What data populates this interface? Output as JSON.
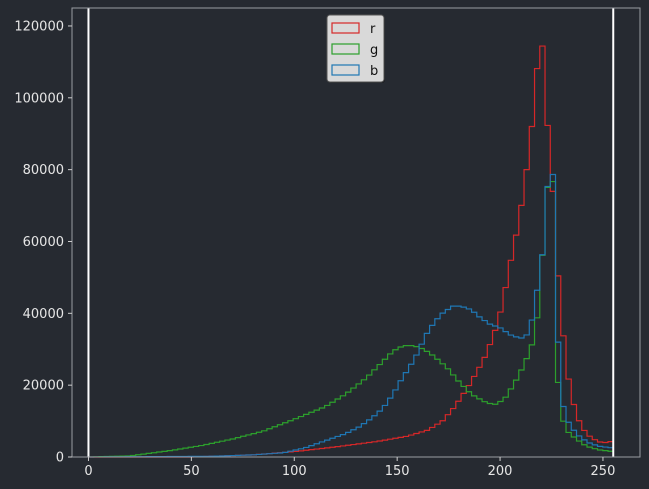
{
  "chart_data": {
    "type": "histogram",
    "title": "",
    "xlabel": "",
    "ylabel": "",
    "xlim": [
      -8,
      268
    ],
    "ylim": [
      0,
      125000
    ],
    "xticks": [
      0,
      50,
      100,
      150,
      200,
      250
    ],
    "yticks": [
      0,
      20000,
      40000,
      60000,
      80000,
      100000,
      120000
    ],
    "bin_width": 2.55,
    "vlines": [
      0,
      255
    ],
    "grid": false,
    "legend": {
      "placement": "upper center"
    },
    "background": "#262a31",
    "series": [
      {
        "name": "r",
        "color": "#d62728",
        "knots": [
          [
            0,
            0
          ],
          [
            50,
            0
          ],
          [
            60,
            200
          ],
          [
            80,
            600
          ],
          [
            100,
            1500
          ],
          [
            120,
            2800
          ],
          [
            140,
            4300
          ],
          [
            155,
            5800
          ],
          [
            165,
            7500
          ],
          [
            172,
            10000
          ],
          [
            178,
            14000
          ],
          [
            185,
            20000
          ],
          [
            192,
            27000
          ],
          [
            197,
            34000
          ],
          [
            201,
            42000
          ],
          [
            205,
            54000
          ],
          [
            209,
            65000
          ],
          [
            212,
            76000
          ],
          [
            215,
            89000
          ],
          [
            218,
            108000
          ],
          [
            220,
            119000
          ],
          [
            222,
            103000
          ],
          [
            224,
            84000
          ],
          [
            226,
            72000
          ],
          [
            228,
            52000
          ],
          [
            230,
            38000
          ],
          [
            232,
            27000
          ],
          [
            234,
            19000
          ],
          [
            237,
            12000
          ],
          [
            240,
            8000
          ],
          [
            244,
            5500
          ],
          [
            248,
            4200
          ],
          [
            252,
            4000
          ],
          [
            255,
            4500
          ]
        ]
      },
      {
        "name": "g",
        "color": "#2ca02c",
        "knots": [
          [
            0,
            0
          ],
          [
            20,
            300
          ],
          [
            40,
            1800
          ],
          [
            55,
            3200
          ],
          [
            70,
            5000
          ],
          [
            85,
            7200
          ],
          [
            100,
            10500
          ],
          [
            115,
            14000
          ],
          [
            125,
            17500
          ],
          [
            135,
            22000
          ],
          [
            142,
            26000
          ],
          [
            148,
            29500
          ],
          [
            153,
            31000
          ],
          [
            158,
            31000
          ],
          [
            163,
            30000
          ],
          [
            168,
            28000
          ],
          [
            174,
            25000
          ],
          [
            180,
            21000
          ],
          [
            186,
            17500
          ],
          [
            192,
            15500
          ],
          [
            197,
            14500
          ],
          [
            202,
            16000
          ],
          [
            207,
            20500
          ],
          [
            212,
            26000
          ],
          [
            216,
            32000
          ],
          [
            219,
            42000
          ],
          [
            221,
            60000
          ],
          [
            223,
            75000
          ],
          [
            225,
            76000
          ],
          [
            226,
            77000
          ],
          [
            228,
            22000
          ],
          [
            230,
            11000
          ],
          [
            233,
            7000
          ],
          [
            237,
            5000
          ],
          [
            242,
            3000
          ],
          [
            248,
            2000
          ],
          [
            255,
            1500
          ]
        ]
      },
      {
        "name": "b",
        "color": "#1f77b4",
        "knots": [
          [
            0,
            0
          ],
          [
            60,
            200
          ],
          [
            80,
            600
          ],
          [
            95,
            1200
          ],
          [
            105,
            2500
          ],
          [
            115,
            4500
          ],
          [
            125,
            6500
          ],
          [
            132,
            8500
          ],
          [
            138,
            11000
          ],
          [
            143,
            13500
          ],
          [
            148,
            17500
          ],
          [
            152,
            21500
          ],
          [
            156,
            25000
          ],
          [
            160,
            29000
          ],
          [
            164,
            34000
          ],
          [
            168,
            37500
          ],
          [
            172,
            40000
          ],
          [
            177,
            42000
          ],
          [
            181,
            42000
          ],
          [
            186,
            41000
          ],
          [
            190,
            39000
          ],
          [
            195,
            37000
          ],
          [
            200,
            36000
          ],
          [
            205,
            34000
          ],
          [
            210,
            33000
          ],
          [
            213,
            34000
          ],
          [
            216,
            39000
          ],
          [
            219,
            50000
          ],
          [
            221,
            58000
          ],
          [
            223,
            75000
          ],
          [
            225,
            80000
          ],
          [
            226,
            78000
          ],
          [
            228,
            34000
          ],
          [
            230,
            16000
          ],
          [
            232,
            11000
          ],
          [
            235,
            8000
          ],
          [
            239,
            5500
          ],
          [
            243,
            4000
          ],
          [
            248,
            3000
          ],
          [
            255,
            2500
          ]
        ]
      }
    ]
  }
}
